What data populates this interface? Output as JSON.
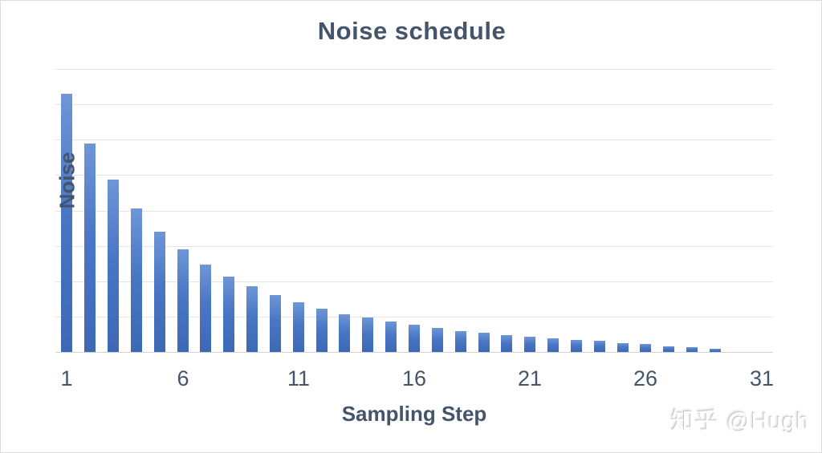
{
  "chart": {
    "title": "Noise schedule",
    "x_axis_title": "Sampling Step",
    "y_axis_title": "Noise",
    "watermark_text": "知乎 @Hugh"
  },
  "chart_data": {
    "type": "bar",
    "title": "Noise schedule",
    "xlabel": "Sampling Step",
    "ylabel": "Noise",
    "x": [
      1,
      2,
      3,
      4,
      5,
      6,
      7,
      8,
      9,
      10,
      11,
      12,
      13,
      14,
      15,
      16,
      17,
      18,
      19,
      20,
      21,
      22,
      23,
      24,
      25,
      26,
      27,
      28,
      29,
      30,
      31
    ],
    "values": [
      14.6,
      11.8,
      9.75,
      8.1,
      6.8,
      5.8,
      4.95,
      4.25,
      3.7,
      3.2,
      2.8,
      2.45,
      2.15,
      1.95,
      1.7,
      1.55,
      1.35,
      1.2,
      1.1,
      0.97,
      0.87,
      0.78,
      0.68,
      0.62,
      0.51,
      0.44,
      0.32,
      0.26,
      0.2,
      0,
      0
    ],
    "x_tick_labels": [
      1,
      6,
      11,
      16,
      21,
      26,
      31
    ],
    "ylim": [
      0,
      16
    ],
    "y_gridline_count": 9,
    "y_tick_labels_shown": false,
    "grid": true,
    "legend_position": "none",
    "bar_color_top": "#6E96D8",
    "bar_color_bottom": "#3C68B4",
    "gridline_color": "#e4e4e4",
    "text_color": "#44546A"
  }
}
